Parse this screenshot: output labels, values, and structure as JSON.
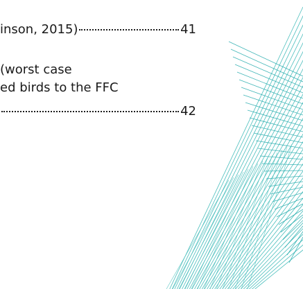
{
  "toc": {
    "entries": [
      {
        "lines": [
          "inson, 2015)"
        ],
        "page": "41"
      },
      {
        "lines": [
          "(worst case",
          "ed birds to the FFC"
        ],
        "page": "42"
      }
    ]
  }
}
